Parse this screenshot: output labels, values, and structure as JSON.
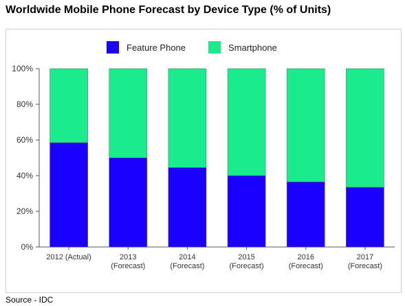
{
  "chart_data": {
    "type": "bar",
    "stacked": true,
    "percent": true,
    "title": "Worldwide Mobile Phone Forecast by Device Type (% of Units)",
    "categories": [
      [
        "2012 (Actual)"
      ],
      [
        "2013",
        "(Forecast)"
      ],
      [
        "2014",
        "(Forecast)"
      ],
      [
        "2015",
        "(Forecast)"
      ],
      [
        "2016",
        "(Forecast)"
      ],
      [
        "2017",
        "(Forecast)"
      ]
    ],
    "series": [
      {
        "name": "Feature Phone",
        "color": "#1a00ff",
        "values": [
          58.5,
          50,
          44.5,
          40,
          36.5,
          33.5
        ]
      },
      {
        "name": "Smartphone",
        "color": "#1aeb8c",
        "values": [
          41.5,
          50,
          55.5,
          60,
          63.5,
          66.5
        ]
      }
    ],
    "ylim": [
      0,
      100
    ],
    "yticks": [
      "0%",
      "20%",
      "40%",
      "60%",
      "80%",
      "100%"
    ],
    "xlabel": "",
    "ylabel": "",
    "legend_position": "top",
    "grid": false
  },
  "footer": {
    "source": "Source - IDC"
  }
}
